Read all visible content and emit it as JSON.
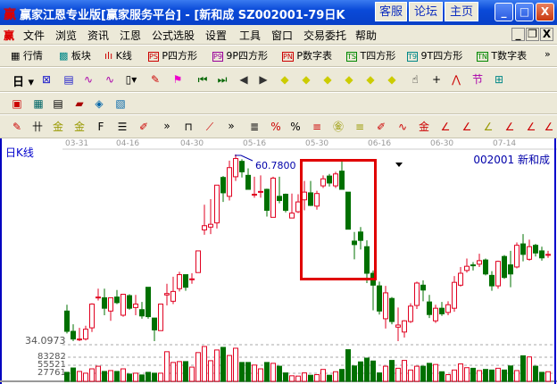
{
  "window": {
    "title": "赢家江恩专业版[赢家服务平台] - [新和成   SZ002001-79日K",
    "buttons": [
      "客服",
      "论坛",
      "主页"
    ],
    "controls": [
      "_",
      "□",
      "X"
    ]
  },
  "menu": {
    "items": [
      "文件",
      "浏览",
      "资讯",
      "江恩",
      "公式选股",
      "设置",
      "工具",
      "窗口",
      "交易委托",
      "帮助"
    ]
  },
  "toolbar1": {
    "items": [
      {
        "label": "行情",
        "icon": "grid-icon"
      },
      {
        "label": "板块",
        "icon": "blocks-icon"
      },
      {
        "label": "K线",
        "icon": "candles-icon"
      },
      {
        "label": "P四方形",
        "badge": "PS"
      },
      {
        "label": "9P四方形",
        "badge": "P9"
      },
      {
        "label": "P数字表",
        "badge": "PN"
      },
      {
        "label": "T四方形",
        "badge": "TS"
      },
      {
        "label": "9T四方形",
        "badge": "T9"
      },
      {
        "label": "T数字表",
        "badge": "TN"
      }
    ],
    "more": "»"
  },
  "toolbar2": {
    "period": "日"
  },
  "toolbar4": {
    "more": "»"
  },
  "chart": {
    "period_label": "日K线",
    "stock_label": "002001  新和成",
    "dates": [
      "03-31",
      "04-16",
      "04-30",
      "05-16",
      "05-30",
      "06-16",
      "06-30",
      "07-14"
    ],
    "high_label": "60.7800",
    "low_label": "34.0973",
    "volume_ticks": [
      "83282",
      "55521",
      "27761"
    ],
    "up_color": "#e00020",
    "down_color": "#007000",
    "highlight_color": "#e00000"
  },
  "chart_data": {
    "type": "candlestick",
    "price_range": [
      34.0973,
      60.78
    ],
    "ohlc": [
      [
        38.4,
        35.5,
        39.3,
        35.2
      ],
      [
        35.5,
        34.4,
        36.5,
        34.1
      ],
      [
        34.4,
        34.4,
        36.0,
        34.1
      ],
      [
        34.4,
        35.8,
        36.3,
        34.2
      ],
      [
        36.0,
        39.4,
        39.5,
        35.4
      ],
      [
        40.4,
        40.4,
        41.6,
        39.9
      ],
      [
        40.3,
        38.8,
        41.6,
        37.8
      ],
      [
        38.4,
        40.3,
        40.3,
        37.0
      ],
      [
        40.4,
        39.6,
        41.4,
        39.4
      ],
      [
        37.8,
        40.8,
        40.8,
        37.6
      ],
      [
        40.6,
        38.8,
        40.8,
        38.6
      ],
      [
        38.9,
        39.4,
        40.7,
        37.8
      ],
      [
        38.6,
        37.7,
        39.7,
        37.3
      ],
      [
        41.8,
        37.6,
        41.8,
        37.3
      ],
      [
        37.4,
        35.7,
        37.4,
        34.1
      ],
      [
        35.6,
        39.4,
        39.4,
        35.6
      ],
      [
        40.7,
        40.9,
        42.3,
        39.2
      ],
      [
        39.8,
        41.2,
        43.3,
        39.4
      ],
      [
        41.6,
        43.6,
        44.0,
        41.2
      ],
      [
        43.6,
        41.8,
        43.6,
        41.3
      ],
      [
        43.0,
        43.0,
        43.8,
        42.3
      ],
      [
        43.9,
        47.0,
        47.0,
        43.9
      ],
      [
        50.0,
        50.6,
        53.6,
        49.3
      ],
      [
        50.4,
        50.8,
        54.4,
        49.4
      ],
      [
        51.0,
        56.4,
        56.4,
        50.2
      ],
      [
        57.5,
        55.3,
        57.7,
        54.0
      ],
      [
        54.8,
        58.9,
        59.9,
        54.2
      ],
      [
        57.6,
        60.2,
        60.78,
        57.0
      ],
      [
        59.8,
        58.3,
        60.1,
        57.5
      ],
      [
        57.8,
        55.8,
        58.8,
        55.8
      ],
      [
        55.1,
        55.1,
        57.6,
        54.6
      ],
      [
        55.4,
        55.5,
        57.8,
        54.6
      ],
      [
        55.8,
        52.8,
        55.9,
        51.9
      ],
      [
        51.8,
        57.4,
        57.6,
        51.8
      ],
      [
        54.8,
        54.2,
        57.6,
        53.8
      ],
      [
        55.1,
        52.8,
        55.2,
        52.5
      ],
      [
        51.7,
        52.4,
        55.2,
        51.7
      ],
      [
        52.6,
        54.0,
        55.1,
        52.4
      ],
      [
        54.3,
        55.4,
        57.0,
        52.8
      ],
      [
        55.3,
        53.5,
        57.0,
        53.4
      ],
      [
        53.4,
        55.2,
        55.6,
        52.9
      ],
      [
        56.3,
        57.3,
        57.8,
        56.0
      ],
      [
        57.7,
        56.7,
        58.0,
        56.2
      ],
      [
        56.3,
        58.0,
        58.3,
        56.0
      ],
      [
        58.4,
        55.8,
        59.9,
        55.8
      ],
      [
        55.4,
        50.1,
        55.4,
        50.1
      ],
      [
        48.4,
        47.9,
        49.7,
        45.8
      ],
      [
        49.7,
        48.5,
        50.4,
        47.2
      ],
      [
        47.6,
        43.8,
        48.5,
        42.4
      ],
      [
        43.8,
        42.1,
        44.2,
        38.5
      ],
      [
        42.0,
        38.4,
        42.6,
        37.9
      ],
      [
        37.3,
        41.0,
        42.0,
        35.9
      ],
      [
        40.2,
        36.9,
        40.4,
        36.5
      ],
      [
        36.1,
        36.4,
        38.9,
        34.1
      ],
      [
        35.4,
        37.0,
        37.1,
        34.6
      ],
      [
        36.9,
        39.1,
        39.5,
        36.7
      ],
      [
        39.2,
        42.4,
        42.6,
        38.7
      ],
      [
        42.1,
        41.4,
        42.8,
        39.8
      ],
      [
        39.7,
        37.9,
        40.7,
        37.4
      ],
      [
        37.0,
        38.8,
        39.3,
        36.7
      ],
      [
        38.8,
        38.0,
        39.7,
        37.7
      ],
      [
        38.2,
        39.3,
        39.8,
        37.8
      ],
      [
        38.8,
        42.5,
        43.4,
        38.3
      ],
      [
        42.1,
        43.8,
        44.7,
        41.9
      ],
      [
        44.2,
        44.8,
        45.9,
        43.9
      ],
      [
        45.0,
        44.9,
        45.4,
        44.2
      ],
      [
        45.1,
        45.6,
        46.6,
        44.7
      ],
      [
        45.7,
        43.7,
        45.9,
        43.5
      ],
      [
        43.5,
        42.0,
        44.1,
        41.3
      ],
      [
        42.0,
        45.5,
        45.6,
        41.6
      ],
      [
        46.2,
        43.2,
        46.4,
        43.0
      ],
      [
        45.0,
        43.7,
        47.0,
        41.8
      ],
      [
        44.7,
        47.8,
        48.2,
        44.5
      ],
      [
        48.0,
        46.5,
        49.4,
        45.5
      ],
      [
        45.8,
        47.6,
        48.6,
        45.6
      ],
      [
        47.8,
        46.7,
        48.0,
        46.2
      ],
      [
        47.0,
        46.0,
        47.6,
        45.6
      ],
      [
        46.5,
        46.5,
        47.0,
        46.0
      ]
    ],
    "volume": [
      31,
      46,
      34,
      28,
      43,
      52,
      34,
      37,
      34,
      43,
      25,
      28,
      22,
      31,
      28,
      28,
      102,
      65,
      68,
      68,
      49,
      99,
      120,
      71,
      108,
      117,
      89,
      114,
      65,
      65,
      56,
      43,
      65,
      62,
      52,
      29,
      19,
      18,
      29,
      21,
      23,
      41,
      21,
      33,
      41,
      109,
      53,
      67,
      80,
      70,
      29,
      52,
      72,
      45,
      72,
      39,
      52,
      52,
      62,
      58,
      33,
      23,
      39,
      60,
      47,
      45,
      37,
      41,
      39,
      45,
      39,
      53,
      37,
      88,
      84,
      52,
      31,
      33
    ],
    "volume_unit": "thousand"
  }
}
